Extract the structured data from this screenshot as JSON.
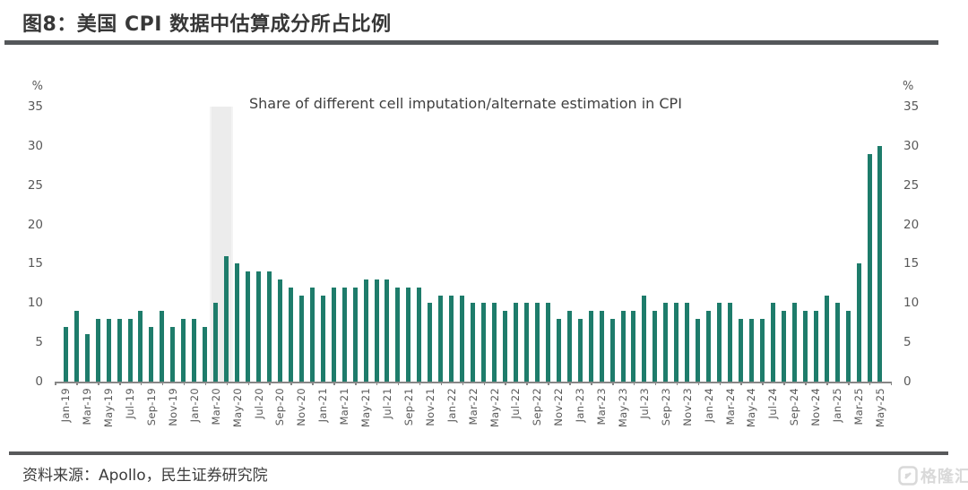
{
  "header": {
    "title": "图8：美国 CPI 数据中估算成分所占比例"
  },
  "footer": {
    "source": "资料来源：Apollo，民生证券研究院",
    "watermark": "格隆汇",
    "watermark_icon": "gelonghui-logo-icon",
    "watermark_color": "#d9d9d9"
  },
  "chart_data": {
    "type": "bar",
    "title": "Share of different cell imputation/alternate estimation in CPI",
    "unit_label": "%",
    "bar_color": "#1e7c6b",
    "ylim": [
      0,
      35
    ],
    "yticks": [
      0,
      5,
      10,
      15,
      20,
      25,
      30,
      35
    ],
    "y_axis_sides": "both",
    "grid": "off",
    "x_tick_label_every": 2,
    "highlight_band": {
      "from": "Mar-20",
      "to": "Apr-20",
      "color": "#ececec"
    },
    "categories": [
      "Jan-19",
      "Feb-19",
      "Mar-19",
      "Apr-19",
      "May-19",
      "Jun-19",
      "Jul-19",
      "Aug-19",
      "Sep-19",
      "Oct-19",
      "Nov-19",
      "Dec-19",
      "Jan-20",
      "Feb-20",
      "Mar-20",
      "Apr-20",
      "May-20",
      "Jun-20",
      "Jul-20",
      "Aug-20",
      "Sep-20",
      "Oct-20",
      "Nov-20",
      "Dec-20",
      "Jan-21",
      "Feb-21",
      "Mar-21",
      "Apr-21",
      "May-21",
      "Jun-21",
      "Jul-21",
      "Aug-21",
      "Sep-21",
      "Oct-21",
      "Nov-21",
      "Dec-21",
      "Jan-22",
      "Feb-22",
      "Mar-22",
      "Apr-22",
      "May-22",
      "Jun-22",
      "Jul-22",
      "Aug-22",
      "Sep-22",
      "Oct-22",
      "Nov-22",
      "Dec-22",
      "Jan-23",
      "Feb-23",
      "Mar-23",
      "Apr-23",
      "May-23",
      "Jun-23",
      "Jul-23",
      "Aug-23",
      "Sep-23",
      "Oct-23",
      "Nov-23",
      "Dec-23",
      "Jan-24",
      "Feb-24",
      "Mar-24",
      "Apr-24",
      "May-24",
      "Jun-24",
      "Jul-24",
      "Aug-24",
      "Sep-24",
      "Oct-24",
      "Nov-24",
      "Dec-24",
      "Jan-25",
      "Feb-25",
      "Mar-25",
      "Apr-25",
      "May-25"
    ],
    "values": [
      7,
      9,
      6,
      8,
      8,
      8,
      8,
      9,
      7,
      9,
      7,
      8,
      8,
      7,
      10,
      16,
      15,
      14,
      14,
      14,
      13,
      12,
      11,
      12,
      11,
      12,
      12,
      12,
      13,
      13,
      13,
      12,
      12,
      12,
      10,
      11,
      11,
      11,
      10,
      10,
      10,
      9,
      10,
      10,
      10,
      10,
      8,
      9,
      8,
      9,
      9,
      8,
      9,
      9,
      11,
      9,
      10,
      10,
      10,
      8,
      9,
      10,
      10,
      8,
      8,
      8,
      10,
      9,
      10,
      9,
      9,
      11,
      10,
      9,
      15,
      29,
      30
    ]
  }
}
